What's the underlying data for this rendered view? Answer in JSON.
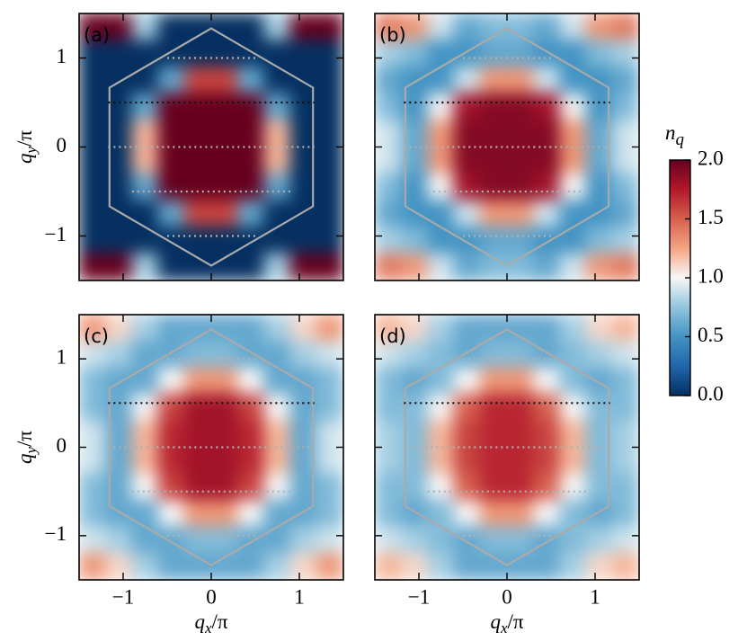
{
  "chart_data": [
    {
      "type": "heatmap",
      "label": "(a)",
      "ylabel": [
        "q",
        "y",
        "/π"
      ],
      "show_xticklabels": false,
      "show_yticklabels": true,
      "x": [
        -1.35,
        -1.05,
        -0.75,
        -0.45,
        -0.15,
        0.15,
        0.45,
        0.75,
        1.05,
        1.35
      ],
      "y": [
        1.35,
        1.05,
        0.75,
        0.45,
        0.15,
        -0.15,
        -0.45,
        -0.75,
        -1.05,
        -1.35
      ],
      "z": [
        [
          2,
          2,
          0.8,
          0,
          0,
          0,
          0,
          0.8,
          2,
          2
        ],
        [
          0,
          0,
          0,
          0,
          0,
          0,
          0,
          0,
          0,
          0
        ],
        [
          0,
          0,
          0,
          0.6,
          1.6,
          1.6,
          0.6,
          0,
          0,
          0
        ],
        [
          0,
          0,
          0.6,
          2,
          2,
          2,
          2,
          0.6,
          0,
          0
        ],
        [
          0,
          0,
          1.2,
          2,
          2,
          2,
          2,
          1.2,
          0,
          0
        ],
        [
          0,
          0,
          1.2,
          2,
          2,
          2,
          2,
          1.2,
          0,
          0
        ],
        [
          0,
          0,
          0.6,
          2,
          2,
          2,
          2,
          0.6,
          0,
          0
        ],
        [
          0,
          0,
          0,
          0.6,
          1.6,
          1.6,
          0.6,
          0,
          0,
          0
        ],
        [
          0,
          0,
          0,
          0,
          0,
          0,
          0,
          0,
          0,
          0
        ],
        [
          2,
          2,
          0.8,
          0,
          0,
          0,
          0,
          0.8,
          2,
          2
        ]
      ],
      "xlim": [
        -1.5,
        1.5
      ],
      "ylim": [
        -1.5,
        1.5
      ],
      "xticks": [
        {
          "value": -1,
          "label": "−1"
        },
        0,
        1
      ],
      "yticks": [
        {
          "value": -1,
          "label": "−1"
        },
        0,
        1
      ]
    },
    {
      "type": "heatmap",
      "label": "(b)",
      "show_xticklabels": false,
      "show_yticklabels": false,
      "x": [
        -1.35,
        -1.05,
        -0.75,
        -0.45,
        -0.15,
        0.15,
        0.45,
        0.75,
        1.05,
        1.35
      ],
      "y": [
        1.35,
        1.05,
        0.75,
        0.45,
        0.15,
        -0.15,
        -0.45,
        -0.75,
        -1.05,
        -1.35
      ],
      "z": [
        [
          1.4,
          1.3,
          0.9,
          0.6,
          0.7,
          0.7,
          0.6,
          0.9,
          1.3,
          1.4
        ],
        [
          0.8,
          0.7,
          0.5,
          0.5,
          0.6,
          0.6,
          0.5,
          0.5,
          0.7,
          0.8
        ],
        [
          0.6,
          0.5,
          0.5,
          0.9,
          1.3,
          1.3,
          0.9,
          0.5,
          0.5,
          0.6
        ],
        [
          0.7,
          0.5,
          1.0,
          1.8,
          1.9,
          1.9,
          1.8,
          1.0,
          0.5,
          0.7
        ],
        [
          0.9,
          0.6,
          1.3,
          1.9,
          1.9,
          1.9,
          1.9,
          1.3,
          0.6,
          0.9
        ],
        [
          0.9,
          0.6,
          1.3,
          1.9,
          1.9,
          1.9,
          1.9,
          1.3,
          0.6,
          0.9
        ],
        [
          0.7,
          0.5,
          1.0,
          1.8,
          1.9,
          1.9,
          1.8,
          1.0,
          0.5,
          0.7
        ],
        [
          0.6,
          0.5,
          0.5,
          0.9,
          1.3,
          1.3,
          0.9,
          0.5,
          0.5,
          0.6
        ],
        [
          0.8,
          0.7,
          0.5,
          0.5,
          0.6,
          0.6,
          0.5,
          0.5,
          0.7,
          0.8
        ],
        [
          1.4,
          1.3,
          0.9,
          0.6,
          0.7,
          0.7,
          0.6,
          0.9,
          1.3,
          1.4
        ]
      ],
      "xlim": [
        -1.5,
        1.5
      ],
      "ylim": [
        -1.5,
        1.5
      ],
      "xticks": [
        -1,
        0,
        1
      ],
      "yticks": [
        -1,
        0,
        1
      ]
    },
    {
      "type": "heatmap",
      "label": "(c)",
      "xlabel": [
        "q",
        "x",
        "/π"
      ],
      "ylabel": [
        "q",
        "y",
        "/π"
      ],
      "show_xticklabels": true,
      "show_yticklabels": true,
      "x": [
        -1.35,
        -1.05,
        -0.75,
        -0.45,
        -0.15,
        0.15,
        0.45,
        0.75,
        1.05,
        1.35
      ],
      "y": [
        1.35,
        1.05,
        0.75,
        0.45,
        0.15,
        -0.15,
        -0.45,
        -0.75,
        -1.05,
        -1.35
      ],
      "z": [
        [
          1.3,
          1.1,
          0.8,
          0.6,
          0.6,
          0.6,
          0.6,
          0.8,
          1.1,
          1.3
        ],
        [
          0.9,
          0.8,
          0.6,
          0.6,
          0.7,
          0.7,
          0.6,
          0.6,
          0.8,
          0.9
        ],
        [
          0.7,
          0.6,
          0.6,
          1.0,
          1.3,
          1.3,
          1.0,
          0.6,
          0.6,
          0.7
        ],
        [
          0.7,
          0.6,
          1.0,
          1.6,
          1.8,
          1.8,
          1.6,
          1.0,
          0.6,
          0.7
        ],
        [
          0.9,
          0.6,
          1.2,
          1.7,
          1.8,
          1.8,
          1.7,
          1.2,
          0.6,
          0.9
        ],
        [
          0.9,
          0.6,
          1.2,
          1.7,
          1.8,
          1.8,
          1.7,
          1.2,
          0.6,
          0.9
        ],
        [
          0.7,
          0.6,
          1.0,
          1.6,
          1.8,
          1.8,
          1.6,
          1.0,
          0.6,
          0.7
        ],
        [
          0.7,
          0.6,
          0.6,
          1.0,
          1.3,
          1.3,
          1.0,
          0.6,
          0.6,
          0.7
        ],
        [
          0.9,
          0.8,
          0.6,
          0.6,
          0.7,
          0.7,
          0.6,
          0.6,
          0.8,
          0.9
        ],
        [
          1.3,
          1.1,
          0.8,
          0.6,
          0.6,
          0.6,
          0.6,
          0.8,
          1.1,
          1.3
        ]
      ],
      "xlim": [
        -1.5,
        1.5
      ],
      "ylim": [
        -1.5,
        1.5
      ],
      "xticks": [
        {
          "value": -1,
          "label": "−1"
        },
        0,
        1
      ],
      "yticks": [
        {
          "value": -1,
          "label": "−1"
        },
        0,
        1
      ]
    },
    {
      "type": "heatmap",
      "label": "(d)",
      "xlabel": [
        "q",
        "x",
        "/π"
      ],
      "show_xticklabels": true,
      "show_yticklabels": false,
      "x": [
        -1.35,
        -1.05,
        -0.75,
        -0.45,
        -0.15,
        0.15,
        0.45,
        0.75,
        1.05,
        1.35
      ],
      "y": [
        1.35,
        1.05,
        0.75,
        0.45,
        0.15,
        -0.15,
        -0.45,
        -0.75,
        -1.05,
        -1.35
      ],
      "z": [
        [
          1.2,
          1.1,
          0.8,
          0.6,
          0.6,
          0.6,
          0.6,
          0.8,
          1.1,
          1.2
        ],
        [
          0.9,
          0.8,
          0.7,
          0.6,
          0.7,
          0.7,
          0.6,
          0.7,
          0.8,
          0.9
        ],
        [
          0.7,
          0.6,
          0.7,
          1.0,
          1.3,
          1.3,
          1.0,
          0.7,
          0.6,
          0.7
        ],
        [
          0.7,
          0.7,
          1.0,
          1.5,
          1.7,
          1.7,
          1.5,
          1.0,
          0.7,
          0.7
        ],
        [
          0.8,
          0.7,
          1.2,
          1.6,
          1.7,
          1.7,
          1.6,
          1.2,
          0.7,
          0.8
        ],
        [
          0.8,
          0.7,
          1.2,
          1.6,
          1.7,
          1.7,
          1.6,
          1.2,
          0.7,
          0.8
        ],
        [
          0.7,
          0.7,
          1.0,
          1.5,
          1.7,
          1.7,
          1.5,
          1.0,
          0.7,
          0.7
        ],
        [
          0.7,
          0.6,
          0.7,
          1.0,
          1.3,
          1.3,
          1.0,
          0.7,
          0.6,
          0.7
        ],
        [
          0.9,
          0.8,
          0.7,
          0.6,
          0.7,
          0.7,
          0.6,
          0.7,
          0.8,
          0.9
        ],
        [
          1.2,
          1.1,
          0.8,
          0.6,
          0.6,
          0.6,
          0.6,
          0.8,
          1.1,
          1.2
        ]
      ],
      "xlim": [
        -1.5,
        1.5
      ],
      "ylim": [
        -1.5,
        1.5
      ],
      "xticks": [
        {
          "value": -1,
          "label": "−1"
        },
        0,
        1
      ],
      "yticks": [
        -1,
        0,
        1
      ]
    },
    {
      "type": "colorbar",
      "label": [
        "n",
        "q"
      ],
      "lim": [
        0,
        2
      ],
      "ticks": [
        {
          "value": 0,
          "label": "0.0"
        },
        0.5,
        {
          "value": 1,
          "label": "1.0"
        },
        1.5,
        {
          "value": 2,
          "label": "2.0"
        }
      ],
      "colors": [
        "#053061",
        "#2166ac",
        "#4393c3",
        "#92c5de",
        "#f7f7f7",
        "#f4a582",
        "#d6604d",
        "#b2182b",
        "#67001f"
      ]
    }
  ]
}
